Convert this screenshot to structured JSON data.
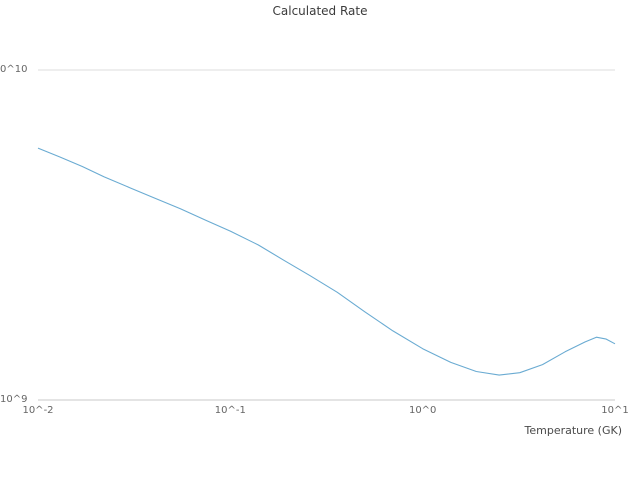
{
  "chart_data": {
    "type": "line",
    "title": "Calculated Rate",
    "xlabel": "Temperature (GK)",
    "ylabel": "",
    "x_scale": "log",
    "y_scale": "log",
    "xlim": [
      0.01,
      10
    ],
    "ylim": [
      1000000000.0,
      10000000000.0
    ],
    "grid": "top-horizontal-and-bottom-axis-only",
    "legend": "none",
    "x_ticks": [
      0.01,
      0.1,
      1,
      10
    ],
    "x_tick_labels": [
      "10^-2",
      "10^-1",
      "10^0",
      "10^1"
    ],
    "y_tick_labels": [
      "10^9",
      "0^10"
    ],
    "series": [
      {
        "name": "calculated-rate",
        "color": "#6aabd2",
        "x": [
          0.01,
          0.013,
          0.017,
          0.022,
          0.03,
          0.04,
          0.055,
          0.075,
          0.1,
          0.14,
          0.19,
          0.26,
          0.36,
          0.5,
          0.7,
          1.0,
          1.4,
          1.9,
          2.5,
          3.2,
          4.2,
          5.5,
          7.0,
          8.0,
          9.0,
          10.0
        ],
        "y": [
          5800000000.0,
          5450000000.0,
          5100000000.0,
          4750000000.0,
          4400000000.0,
          4100000000.0,
          3800000000.0,
          3500000000.0,
          3250000000.0,
          2950000000.0,
          2650000000.0,
          2380000000.0,
          2120000000.0,
          1850000000.0,
          1620000000.0,
          1430000000.0,
          1300000000.0,
          1220000000.0,
          1190000000.0,
          1210000000.0,
          1280000000.0,
          1400000000.0,
          1500000000.0,
          1550000000.0,
          1530000000.0,
          1480000000.0
        ]
      }
    ]
  }
}
